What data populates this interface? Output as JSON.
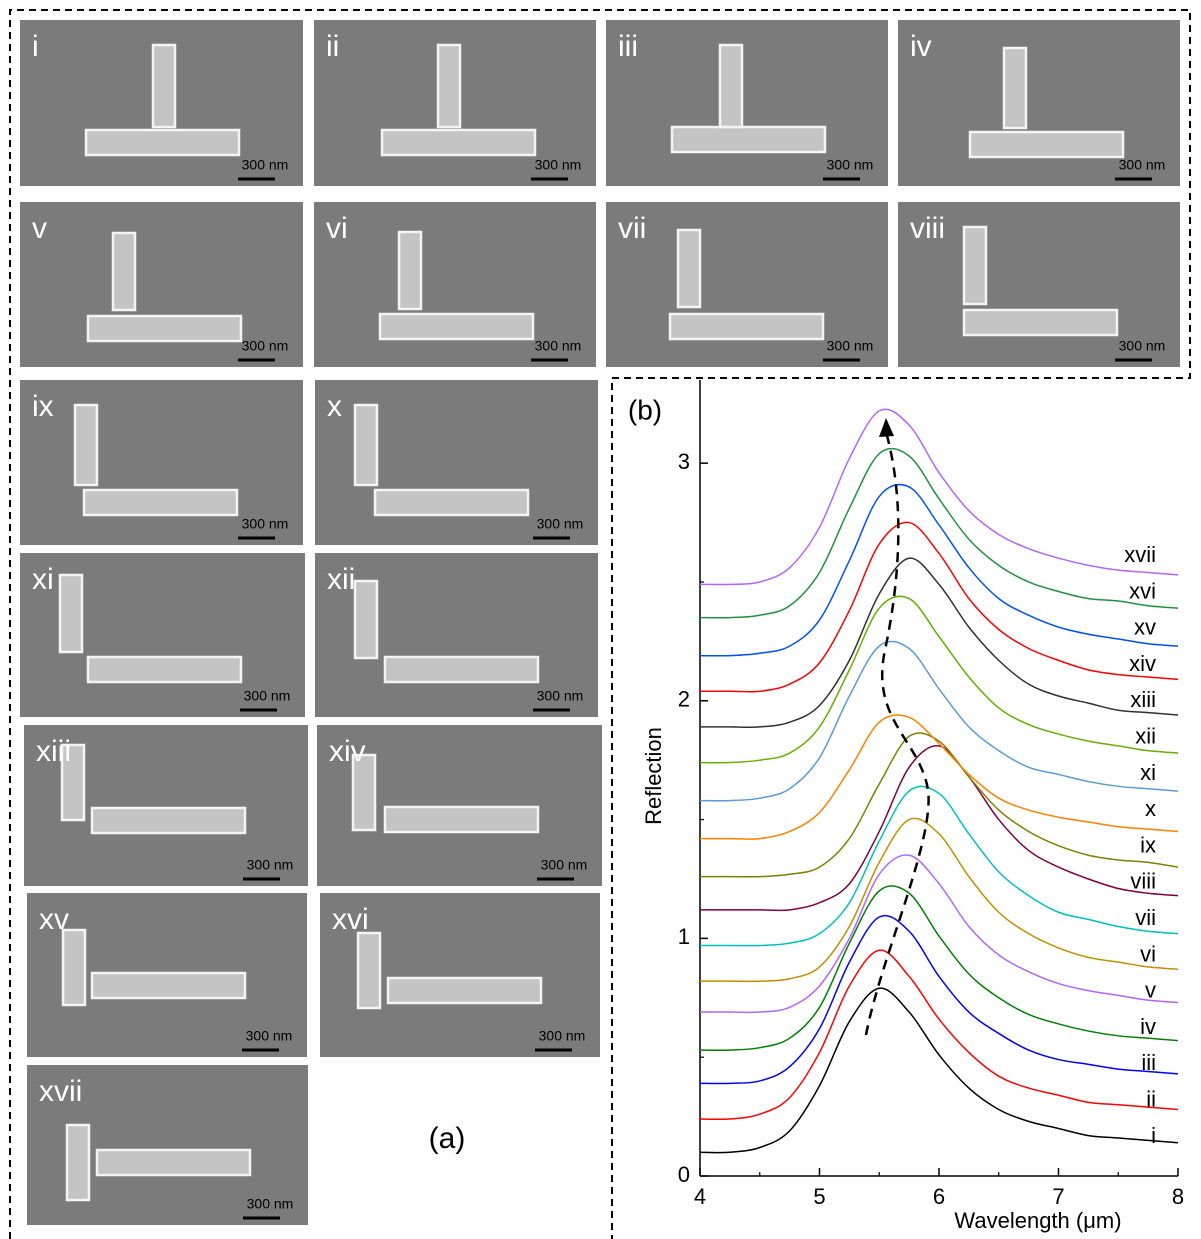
{
  "panel_a": {
    "label": "(a)",
    "scale_bar": "300 nm",
    "images": [
      "i",
      "ii",
      "iii",
      "iv",
      "v",
      "vi",
      "vii",
      "viii",
      "ix",
      "x",
      "xi",
      "xii",
      "xiii",
      "xiv",
      "xv",
      "xvi",
      "xvii"
    ]
  },
  "chart_data": {
    "type": "line",
    "panel_label": "(b)",
    "x_label": "Wavelength (μm)",
    "y_label": "Reflection",
    "x": [
      4,
      4.25,
      4.5,
      4.75,
      5,
      5.25,
      5.5,
      5.75,
      6,
      6.25,
      6.5,
      6.75,
      7,
      7.25,
      7.5,
      7.75,
      8
    ],
    "xlim": [
      4,
      8
    ],
    "ylim": [
      0,
      3.35
    ],
    "xticks": [
      4,
      5,
      6,
      7,
      8
    ],
    "yticks": [
      0,
      1,
      2,
      3
    ],
    "minor_xticks": [
      4.5,
      5.5,
      6.5,
      7.5
    ],
    "minor_yticks": [
      0.5,
      1.5,
      2.5
    ],
    "series": [
      {
        "name": "i",
        "color": "#000000",
        "values": [
          0.1,
          0.1,
          0.12,
          0.19,
          0.38,
          0.65,
          0.79,
          0.69,
          0.51,
          0.37,
          0.28,
          0.23,
          0.2,
          0.17,
          0.16,
          0.15,
          0.14
        ]
      },
      {
        "name": "ii",
        "color": "#ff0000",
        "values": [
          0.24,
          0.24,
          0.26,
          0.33,
          0.52,
          0.8,
          0.95,
          0.84,
          0.66,
          0.52,
          0.42,
          0.37,
          0.34,
          0.31,
          0.3,
          0.29,
          0.28
        ]
      },
      {
        "name": "iii",
        "color": "#0000ff",
        "values": [
          0.39,
          0.39,
          0.4,
          0.46,
          0.62,
          0.9,
          1.09,
          1.03,
          0.84,
          0.69,
          0.6,
          0.53,
          0.49,
          0.47,
          0.45,
          0.44,
          0.43
        ]
      },
      {
        "name": "iv",
        "color": "#008000",
        "values": [
          0.53,
          0.53,
          0.54,
          0.58,
          0.71,
          0.98,
          1.2,
          1.19,
          1.01,
          0.85,
          0.75,
          0.68,
          0.64,
          0.61,
          0.59,
          0.58,
          0.57
        ]
      },
      {
        "name": "v",
        "color": "#b266ff",
        "values": [
          0.69,
          0.69,
          0.69,
          0.71,
          0.8,
          1.0,
          1.27,
          1.35,
          1.23,
          1.05,
          0.93,
          0.86,
          0.81,
          0.78,
          0.76,
          0.74,
          0.73
        ]
      },
      {
        "name": "vi",
        "color": "#c09000",
        "values": [
          0.82,
          0.82,
          0.82,
          0.83,
          0.88,
          1.05,
          1.32,
          1.5,
          1.44,
          1.26,
          1.11,
          1.02,
          0.96,
          0.92,
          0.9,
          0.88,
          0.87
        ]
      },
      {
        "name": "vii",
        "color": "#00c0c0",
        "values": [
          0.97,
          0.97,
          0.97,
          0.98,
          1.02,
          1.15,
          1.41,
          1.62,
          1.61,
          1.44,
          1.28,
          1.18,
          1.11,
          1.08,
          1.05,
          1.03,
          1.02
        ]
      },
      {
        "name": "viii",
        "color": "#800040",
        "values": [
          1.12,
          1.12,
          1.12,
          1.12,
          1.15,
          1.23,
          1.45,
          1.72,
          1.81,
          1.68,
          1.5,
          1.37,
          1.3,
          1.25,
          1.21,
          1.19,
          1.18
        ]
      },
      {
        "name": "ix",
        "color": "#808000",
        "values": [
          1.26,
          1.26,
          1.26,
          1.27,
          1.3,
          1.42,
          1.65,
          1.85,
          1.83,
          1.68,
          1.54,
          1.45,
          1.39,
          1.35,
          1.33,
          1.32,
          1.3
        ]
      },
      {
        "name": "x",
        "color": "#ff8000",
        "values": [
          1.42,
          1.42,
          1.42,
          1.45,
          1.53,
          1.71,
          1.91,
          1.93,
          1.82,
          1.69,
          1.59,
          1.54,
          1.51,
          1.49,
          1.47,
          1.46,
          1.45
        ]
      },
      {
        "name": "xi",
        "color": "#5b9bd5",
        "values": [
          1.58,
          1.58,
          1.59,
          1.63,
          1.76,
          2.02,
          2.23,
          2.22,
          2.05,
          1.89,
          1.79,
          1.72,
          1.69,
          1.66,
          1.64,
          1.63,
          1.62
        ]
      },
      {
        "name": "xii",
        "color": "#66b000",
        "values": [
          1.74,
          1.74,
          1.75,
          1.78,
          1.89,
          2.13,
          2.39,
          2.43,
          2.27,
          2.1,
          1.97,
          1.9,
          1.86,
          1.83,
          1.81,
          1.79,
          1.78
        ]
      },
      {
        "name": "xiii",
        "color": "#303030",
        "values": [
          1.89,
          1.89,
          1.89,
          1.91,
          1.98,
          2.17,
          2.45,
          2.6,
          2.49,
          2.31,
          2.17,
          2.07,
          2.02,
          1.99,
          1.96,
          1.95,
          1.94
        ]
      },
      {
        "name": "xiv",
        "color": "#ff0000",
        "values": [
          2.04,
          2.04,
          2.04,
          2.07,
          2.16,
          2.38,
          2.66,
          2.75,
          2.62,
          2.43,
          2.3,
          2.22,
          2.17,
          2.13,
          2.11,
          2.1,
          2.09
        ]
      },
      {
        "name": "xv",
        "color": "#0050ff",
        "values": [
          2.19,
          2.19,
          2.2,
          2.23,
          2.34,
          2.59,
          2.86,
          2.9,
          2.74,
          2.56,
          2.43,
          2.36,
          2.31,
          2.28,
          2.26,
          2.24,
          2.23
        ]
      },
      {
        "name": "xvi",
        "color": "#209040",
        "values": [
          2.35,
          2.35,
          2.36,
          2.4,
          2.54,
          2.81,
          3.04,
          3.03,
          2.85,
          2.68,
          2.57,
          2.5,
          2.46,
          2.43,
          2.42,
          2.4,
          2.39
        ]
      },
      {
        "name": "xvii",
        "color": "#b266ff",
        "values": [
          2.49,
          2.49,
          2.5,
          2.56,
          2.73,
          3.02,
          3.22,
          3.16,
          2.96,
          2.8,
          2.7,
          2.64,
          2.6,
          2.57,
          2.55,
          2.54,
          2.53
        ]
      }
    ]
  }
}
